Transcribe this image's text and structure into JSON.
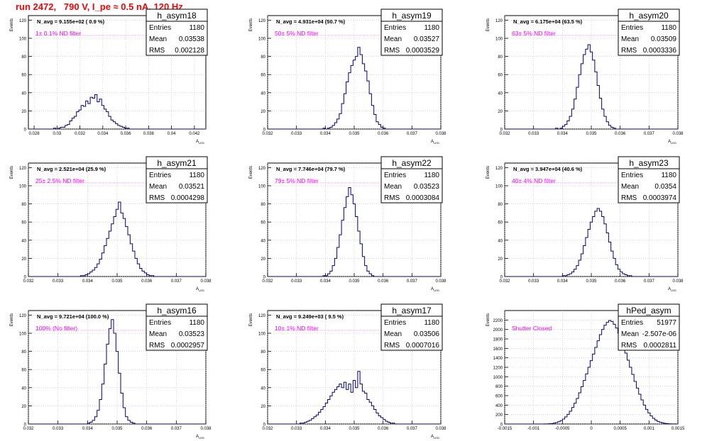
{
  "page": {
    "title": "run 2472,   790 V, I_pe ≈ 0.5 nA, 120 Hz"
  },
  "colors": {
    "hist": "#00008b",
    "frame": "#000000",
    "grid": "#bbbbbb",
    "annotation": "#ff00ff",
    "title": "#ff0000"
  },
  "chart_data": [
    {
      "type": "histogram",
      "name": "h_asym18",
      "ylabel": "Events",
      "xlabel": "A_LED",
      "stats": {
        "Entries": "1180",
        "Mean": "0.03538",
        "RMS": "0.002128"
      },
      "navg": "N_avg = 9.155e+02 ( 0.9 %)",
      "filter_label": "1± 0.1% ND filter",
      "xlim": [
        0.0275,
        0.043
      ],
      "ylim": [
        0,
        125
      ],
      "xticks": [
        0.028,
        0.03,
        0.032,
        0.034,
        0.036,
        0.038,
        0.04,
        0.042
      ],
      "xtick_labels": [
        "0.028",
        "0.03",
        "0.032",
        "0.034",
        "0.036",
        "0.038",
        "0.04",
        "0.042"
      ],
      "yticks": [
        0,
        20,
        40,
        60,
        80,
        100,
        120
      ],
      "bins": {
        "min": 0.0275,
        "width": 0.0002,
        "counts": [
          0,
          0,
          0,
          0,
          0,
          0,
          0,
          0,
          0,
          0,
          0,
          1,
          0,
          1,
          2,
          2,
          4,
          5,
          9,
          12,
          14,
          19,
          21,
          26,
          25,
          31,
          28,
          35,
          34,
          38,
          30,
          33,
          26,
          22,
          19,
          14,
          10,
          8,
          6,
          4,
          3,
          2,
          1,
          1,
          0,
          0,
          0,
          0,
          0,
          0,
          0,
          0,
          0,
          0,
          0,
          0,
          0,
          0,
          0,
          0,
          0,
          0,
          0,
          0,
          0,
          0,
          0,
          0,
          0,
          0,
          0,
          0,
          0,
          0,
          0,
          0,
          0
        ]
      }
    },
    {
      "type": "histogram",
      "name": "h_asym19",
      "ylabel": "Events",
      "xlabel": "A_LED",
      "stats": {
        "Entries": "1180",
        "Mean": "0.03527",
        "RMS": "0.0003529"
      },
      "navg": "N_avg = 4.931e+04 (50.7 %)",
      "filter_label": "50± 5% ND filter",
      "xlim": [
        0.032,
        0.038
      ],
      "ylim": [
        0,
        125
      ],
      "xticks": [
        0.032,
        0.033,
        0.034,
        0.035,
        0.036,
        0.037,
        0.038
      ],
      "xtick_labels": [
        "0.032",
        "0.033",
        "0.034",
        "0.035",
        "0.036",
        "0.037",
        "0.038"
      ],
      "yticks": [
        0,
        20,
        40,
        60,
        80,
        100,
        120
      ],
      "bins": {
        "min": 0.032,
        "width": 8e-05,
        "counts": [
          0,
          0,
          0,
          0,
          0,
          0,
          0,
          0,
          0,
          0,
          0,
          0,
          0,
          0,
          0,
          0,
          0,
          0,
          0,
          0,
          0,
          0,
          0,
          0,
          1,
          0,
          1,
          2,
          4,
          7,
          11,
          17,
          28,
          39,
          52,
          62,
          70,
          76,
          80,
          90,
          82,
          72,
          64,
          53,
          39,
          26,
          16,
          8,
          5,
          2,
          1,
          0,
          0,
          0,
          0,
          0,
          0,
          0,
          0,
          0,
          0,
          0,
          0,
          0,
          0,
          0,
          0,
          0,
          0,
          0,
          0,
          0,
          0,
          0,
          0
        ]
      }
    },
    {
      "type": "histogram",
      "name": "h_asym20",
      "ylabel": "Events",
      "xlabel": "A_LED",
      "stats": {
        "Entries": "1180",
        "Mean": "0.03509",
        "RMS": "0.0003336"
      },
      "navg": "N_avg = 6.175e+04 (63.5 %)",
      "filter_label": "63± 5% ND filter",
      "xlim": [
        0.032,
        0.038
      ],
      "ylim": [
        0,
        125
      ],
      "xticks": [
        0.032,
        0.033,
        0.034,
        0.035,
        0.036,
        0.037,
        0.038
      ],
      "xtick_labels": [
        "0.032",
        "0.033",
        "0.034",
        "0.035",
        "0.036",
        "0.037",
        "0.038"
      ],
      "yticks": [
        0,
        20,
        40,
        60,
        80,
        100,
        120
      ],
      "bins": {
        "min": 0.032,
        "width": 8e-05,
        "counts": [
          0,
          0,
          0,
          0,
          0,
          0,
          0,
          0,
          0,
          0,
          0,
          0,
          0,
          0,
          0,
          0,
          0,
          0,
          0,
          0,
          0,
          0,
          1,
          0,
          1,
          3,
          5,
          9,
          14,
          22,
          33,
          46,
          60,
          72,
          82,
          88,
          93,
          85,
          76,
          63,
          48,
          34,
          22,
          14,
          8,
          4,
          2,
          1,
          0,
          0,
          0,
          0,
          0,
          0,
          0,
          0,
          0,
          0,
          0,
          0,
          0,
          0,
          0,
          0,
          0,
          0,
          0,
          0,
          0,
          0,
          0,
          0,
          0,
          0,
          0
        ]
      }
    },
    {
      "type": "histogram",
      "name": "h_asym21",
      "ylabel": "Events",
      "xlabel": "A_LED",
      "stats": {
        "Entries": "1180",
        "Mean": "0.03521",
        "RMS": "0.0004298"
      },
      "navg": "N_avg = 2.521e+04 (25.9 %)",
      "filter_label": "25± 2.5% ND filter",
      "xlim": [
        0.032,
        0.038
      ],
      "ylim": [
        0,
        125
      ],
      "xticks": [
        0.032,
        0.033,
        0.034,
        0.035,
        0.036,
        0.037,
        0.038
      ],
      "xtick_labels": [
        "0.032",
        "0.033",
        "0.034",
        "0.035",
        "0.036",
        "0.037",
        "0.038"
      ],
      "yticks": [
        0,
        20,
        40,
        60,
        80,
        100,
        120
      ],
      "bins": {
        "min": 0.032,
        "width": 8e-05,
        "counts": [
          0,
          0,
          0,
          0,
          0,
          0,
          0,
          0,
          0,
          0,
          0,
          0,
          0,
          0,
          0,
          0,
          0,
          0,
          0,
          0,
          0,
          0,
          1,
          1,
          2,
          3,
          5,
          7,
          10,
          14,
          19,
          26,
          34,
          42,
          50,
          58,
          66,
          74,
          82,
          70,
          64,
          55,
          46,
          36,
          28,
          20,
          14,
          9,
          6,
          4,
          2,
          1,
          1,
          0,
          0,
          0,
          0,
          0,
          0,
          0,
          0,
          0,
          0,
          0,
          0,
          0,
          0,
          0,
          0,
          0,
          0,
          0,
          0,
          0,
          0
        ]
      }
    },
    {
      "type": "histogram",
      "name": "h_asym22",
      "ylabel": "Events",
      "xlabel": "A_LED",
      "stats": {
        "Entries": "1180",
        "Mean": "0.03523",
        "RMS": "0.0003084"
      },
      "navg": "N_avg = 7.746e+04 (79.7 %)",
      "filter_label": "79± 5% ND filter",
      "xlim": [
        0.032,
        0.038
      ],
      "ylim": [
        0,
        125
      ],
      "xticks": [
        0.032,
        0.033,
        0.034,
        0.035,
        0.036,
        0.037,
        0.038
      ],
      "xtick_labels": [
        "0.032",
        "0.033",
        "0.034",
        "0.035",
        "0.036",
        "0.037",
        "0.038"
      ],
      "yticks": [
        0,
        20,
        40,
        60,
        80,
        100,
        120
      ],
      "bins": {
        "min": 0.032,
        "width": 8e-05,
        "counts": [
          0,
          0,
          0,
          0,
          0,
          0,
          0,
          0,
          0,
          0,
          0,
          0,
          0,
          0,
          0,
          0,
          0,
          0,
          0,
          0,
          0,
          0,
          0,
          0,
          1,
          1,
          3,
          6,
          12,
          20,
          32,
          46,
          62,
          76,
          88,
          98,
          90,
          80,
          66,
          50,
          36,
          22,
          12,
          6,
          3,
          1,
          0,
          0,
          0,
          0,
          0,
          0,
          0,
          0,
          0,
          0,
          0,
          0,
          0,
          0,
          0,
          0,
          0,
          0,
          0,
          0,
          0,
          0,
          0,
          0,
          0,
          0,
          0,
          0,
          0
        ]
      }
    },
    {
      "type": "histogram",
      "name": "h_asym23",
      "ylabel": "Events",
      "xlabel": "A_LED",
      "stats": {
        "Entries": "1180",
        "Mean": "0.0354",
        "RMS": "0.0003974"
      },
      "navg": "N_avg = 3.947e+04 (40.6 %)",
      "filter_label": "40± 4% ND filter",
      "xlim": [
        0.032,
        0.038
      ],
      "ylim": [
        0,
        125
      ],
      "xticks": [
        0.032,
        0.033,
        0.034,
        0.035,
        0.036,
        0.037,
        0.038
      ],
      "xtick_labels": [
        "0.032",
        "0.033",
        "0.034",
        "0.035",
        "0.036",
        "0.037",
        "0.038"
      ],
      "yticks": [
        0,
        20,
        40,
        60,
        80,
        100,
        120
      ],
      "bins": {
        "min": 0.032,
        "width": 8e-05,
        "counts": [
          0,
          0,
          0,
          0,
          0,
          0,
          0,
          0,
          0,
          0,
          0,
          0,
          0,
          0,
          0,
          0,
          0,
          0,
          0,
          0,
          0,
          0,
          0,
          0,
          0,
          1,
          1,
          2,
          3,
          5,
          8,
          12,
          18,
          25,
          34,
          43,
          52,
          60,
          66,
          72,
          75,
          72,
          66,
          58,
          48,
          38,
          28,
          20,
          13,
          8,
          5,
          3,
          2,
          1,
          1,
          0,
          0,
          0,
          0,
          0,
          0,
          0,
          0,
          0,
          0,
          0,
          0,
          0,
          0,
          0,
          0,
          0,
          0,
          0,
          0
        ]
      }
    },
    {
      "type": "histogram",
      "name": "h_asym16",
      "ylabel": "Events",
      "xlabel": "A_LED",
      "stats": {
        "Entries": "1180",
        "Mean": "0.03523",
        "RMS": "0.0002957"
      },
      "navg": "N_avg = 9.721e+04 (100.0 %)",
      "filter_label": "100% (No filter)",
      "xlim": [
        0.032,
        0.038
      ],
      "ylim": [
        0,
        125
      ],
      "xticks": [
        0.032,
        0.033,
        0.034,
        0.035,
        0.036,
        0.037,
        0.038
      ],
      "xtick_labels": [
        "0.032",
        "0.033",
        "0.034",
        "0.035",
        "0.036",
        "0.037",
        "0.038"
      ],
      "yticks": [
        0,
        20,
        40,
        60,
        80,
        100,
        120
      ],
      "bins": {
        "min": 0.032,
        "width": 8e-05,
        "counts": [
          0,
          0,
          0,
          0,
          0,
          0,
          0,
          0,
          0,
          0,
          0,
          0,
          0,
          0,
          0,
          0,
          0,
          0,
          0,
          0,
          0,
          0,
          0,
          0,
          0,
          1,
          2,
          4,
          8,
          15,
          27,
          44,
          66,
          88,
          105,
          115,
          100,
          80,
          56,
          34,
          18,
          8,
          4,
          2,
          1,
          0,
          0,
          0,
          0,
          0,
          0,
          0,
          0,
          0,
          0,
          0,
          0,
          0,
          0,
          0,
          0,
          0,
          0,
          0,
          0,
          0,
          0,
          0,
          0,
          0,
          0,
          0,
          0,
          0,
          0
        ]
      }
    },
    {
      "type": "histogram",
      "name": "h_asym17",
      "ylabel": "Events",
      "xlabel": "A_LED",
      "stats": {
        "Entries": "1180",
        "Mean": "0.03506",
        "RMS": "0.0007016"
      },
      "navg": "N_avg = 9.249e+03 ( 9.5 %)",
      "filter_label": "10± 1% ND filter",
      "xlim": [
        0.032,
        0.038
      ],
      "ylim": [
        0,
        125
      ],
      "xticks": [
        0.032,
        0.033,
        0.034,
        0.035,
        0.036,
        0.037,
        0.038
      ],
      "xtick_labels": [
        "0.032",
        "0.033",
        "0.034",
        "0.035",
        "0.036",
        "0.037",
        "0.038"
      ],
      "yticks": [
        0,
        20,
        40,
        60,
        80,
        100,
        120
      ],
      "bins": {
        "min": 0.032,
        "width": 8e-05,
        "counts": [
          0,
          0,
          0,
          0,
          0,
          0,
          0,
          0,
          0,
          0,
          0,
          0,
          0,
          0,
          1,
          1,
          2,
          3,
          4,
          6,
          8,
          10,
          13,
          16,
          19,
          23,
          27,
          31,
          35,
          38,
          41,
          44,
          40,
          46,
          38,
          44,
          35,
          48,
          40,
          58,
          44,
          36,
          34,
          27,
          24,
          20,
          16,
          12,
          9,
          7,
          5,
          3,
          2,
          1,
          1,
          0,
          0,
          0,
          0,
          0,
          0,
          0,
          0,
          0,
          0,
          0,
          0,
          0,
          0,
          0,
          0,
          0,
          0,
          0,
          0
        ]
      }
    },
    {
      "type": "histogram",
      "name": "hPed_asym",
      "ylabel": "Events",
      "xlabel": "",
      "stats": {
        "Entries": "51977",
        "Mean": "-2.507e-06",
        "RMS": "0.0002811"
      },
      "navg": "",
      "filter_label": "Shutter Closed",
      "xlim": [
        -0.0015,
        0.0015
      ],
      "ylim": [
        0,
        2400
      ],
      "xticks": [
        -0.0015,
        -0.001,
        -0.0005,
        0,
        0.0005,
        0.001,
        0.0015
      ],
      "xtick_labels": [
        "-0.0015",
        "-0.001",
        "-0.0005",
        "0",
        "0.0005",
        "0.001",
        "0.0015"
      ],
      "yticks": [
        0,
        200,
        400,
        600,
        800,
        1000,
        1200,
        1400,
        1600,
        1800,
        2000,
        2200
      ],
      "bins": {
        "min": -0.0015,
        "width": 4e-05,
        "counts": [
          0,
          0,
          0,
          0,
          0,
          0,
          0,
          0,
          0,
          0,
          0,
          0,
          0,
          0,
          0,
          0,
          0,
          1,
          2,
          5,
          10,
          18,
          30,
          48,
          72,
          105,
          150,
          205,
          270,
          350,
          440,
          540,
          660,
          790,
          920,
          1060,
          1200,
          1340,
          1480,
          1620,
          1760,
          1890,
          2000,
          2090,
          2150,
          2190,
          2170,
          2110,
          2030,
          1920,
          1790,
          1650,
          1500,
          1350,
          1200,
          1050,
          900,
          760,
          630,
          510,
          400,
          310,
          235,
          170,
          120,
          82,
          55,
          35,
          22,
          13,
          7,
          4,
          2,
          1,
          0,
          0,
          0,
          0,
          0,
          0,
          0,
          0,
          0,
          0,
          0,
          0,
          0,
          0,
          0,
          0,
          0,
          0,
          0,
          0,
          0,
          0,
          0,
          0,
          0,
          0
        ]
      }
    }
  ]
}
